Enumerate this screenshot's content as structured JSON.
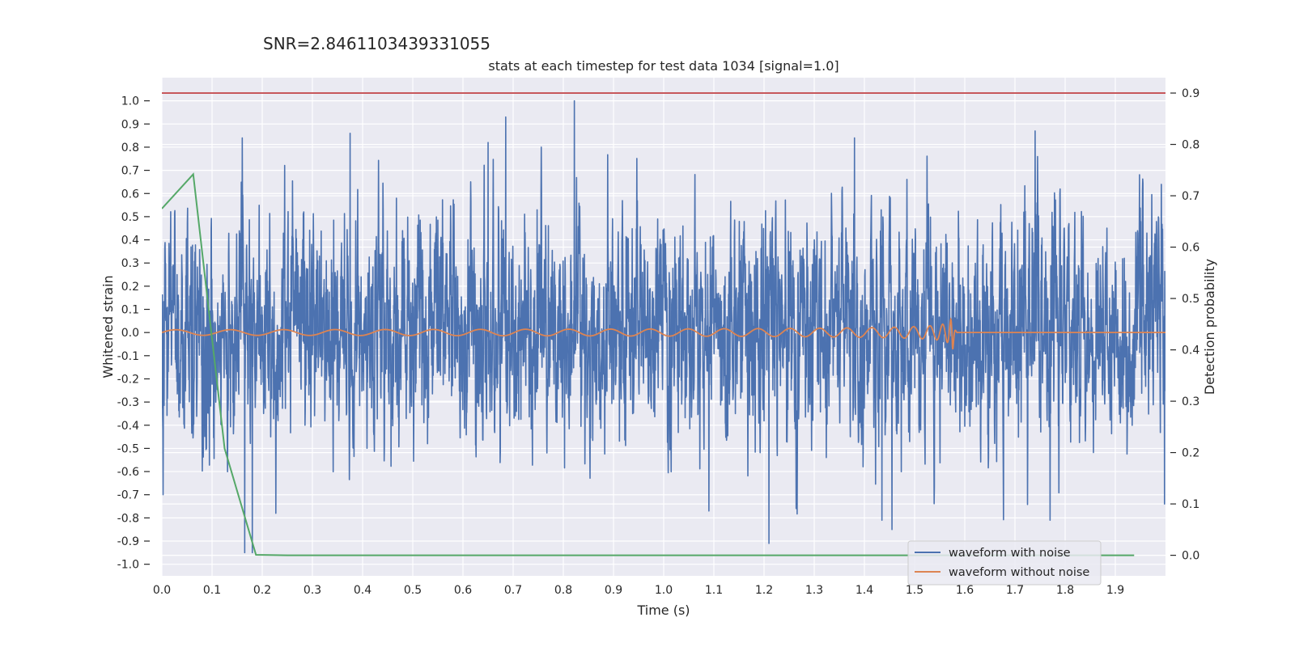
{
  "suptitle": "SNR=2.8461103439331055",
  "chart_data": {
    "type": "line",
    "title": "stats at each timestep for test data 1034 [signal=1.0]",
    "xlabel": "Time (s)",
    "ylabel": "Whitened strain",
    "y2label": "Detection probability",
    "xlim": [
      0.0,
      2.0
    ],
    "ylim": [
      -1.05,
      1.1
    ],
    "y2lim": [
      -0.04,
      0.93
    ],
    "xticks": [
      "0.0",
      "0.1",
      "0.2",
      "0.3",
      "0.4",
      "0.5",
      "0.6",
      "0.7",
      "0.8",
      "0.9",
      "1.0",
      "1.1",
      "1.2",
      "1.3",
      "1.4",
      "1.5",
      "1.6",
      "1.7",
      "1.8",
      "1.9"
    ],
    "yticks": [
      "1.0",
      "0.9",
      "0.8",
      "0.7",
      "0.6",
      "0.5",
      "0.4",
      "0.3",
      "0.2",
      "0.1",
      "0.0",
      "-0.1",
      "-0.2",
      "-0.3",
      "-0.4",
      "-0.5",
      "-0.6",
      "-0.7",
      "-0.8",
      "-0.9",
      "-1.0"
    ],
    "y2ticks": [
      "0.9",
      "0.8",
      "0.7",
      "0.6",
      "0.5",
      "0.4",
      "0.3",
      "0.2",
      "0.1",
      "0.0"
    ],
    "grid": true,
    "legend_position": "lower-right",
    "threshold": {
      "value": 0.9,
      "axis": "right",
      "color": "#c44e52"
    },
    "series": [
      {
        "name": "waveform with noise",
        "color": "#4c72b0",
        "axis": "left",
        "t_start": 0.0,
        "t_end": 2.0,
        "samples": 4096,
        "amplitude_rms": 0.25,
        "peaks": [
          {
            "t": 0.16,
            "v": 0.84
          },
          {
            "t": 0.165,
            "v": -0.95
          },
          {
            "t": 0.18,
            "v": -0.95
          },
          {
            "t": 0.375,
            "v": 0.86
          },
          {
            "t": 0.65,
            "v": 0.82
          },
          {
            "t": 0.685,
            "v": 0.93
          },
          {
            "t": 0.822,
            "v": 1.0
          },
          {
            "t": 1.09,
            "v": -0.77
          },
          {
            "t": 1.21,
            "v": -0.91
          },
          {
            "t": 1.38,
            "v": 0.84
          },
          {
            "t": 1.435,
            "v": -0.81
          },
          {
            "t": 1.455,
            "v": -0.85
          },
          {
            "t": 1.74,
            "v": 0.87
          },
          {
            "t": 1.77,
            "v": -0.81
          },
          {
            "t": 1.998,
            "v": -0.74
          }
        ]
      },
      {
        "name": "waveform without noise",
        "color": "#dd8452",
        "axis": "left",
        "t_start": 0.0,
        "t_merge": 1.575,
        "t_end": 2.0,
        "amp_start": 0.012,
        "amp_peak": 0.13,
        "freq_start": 9,
        "freq_peak": 100
      },
      {
        "name": "Detection probability",
        "color": "#55a868",
        "axis": "right",
        "x": [
          0.0,
          0.0625,
          0.125,
          0.1875,
          0.25,
          0.3125,
          0.375,
          0.4375,
          0.5,
          0.5625,
          0.625,
          0.6875,
          0.75,
          0.8125,
          0.875,
          0.9375,
          1.0,
          1.0625,
          1.125,
          1.1875,
          1.25,
          1.3125,
          1.375,
          1.4375,
          1.5,
          1.5625,
          1.625,
          1.6875,
          1.75,
          1.8125,
          1.875,
          1.9375
        ],
        "values": [
          0.675,
          0.742,
          0.208,
          0.001,
          0.0,
          0.0,
          0.0,
          0.0,
          0.0,
          0.0,
          0.0,
          0.0,
          0.0,
          0.0,
          0.0,
          0.0,
          0.0,
          0.0,
          0.0,
          0.0,
          0.0,
          0.0,
          0.0,
          0.0,
          0.0,
          0.0,
          0.0,
          0.0,
          0.0,
          0.0,
          0.0,
          0.0
        ]
      }
    ]
  }
}
